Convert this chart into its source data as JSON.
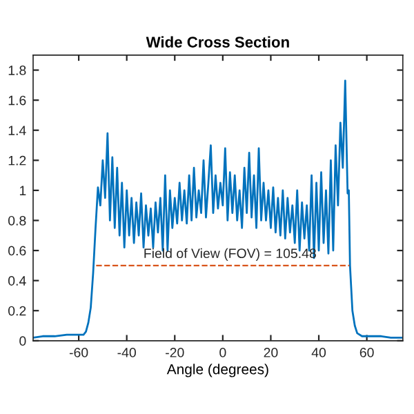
{
  "chart_data": {
    "type": "line",
    "title": "Wide Cross Section",
    "xlabel": "Angle (degrees)",
    "xlim": [
      -79,
      75
    ],
    "ylim": [
      0,
      1.9
    ],
    "xticks": [
      -60,
      -40,
      -20,
      0,
      20,
      40,
      60
    ],
    "yticks": [
      0,
      0.2,
      0.4,
      0.6,
      0.8,
      1,
      1.2,
      1.4,
      1.6,
      1.8
    ],
    "grid": false,
    "series": [
      {
        "color": "#0072bd",
        "line_style": "solid",
        "x": [
          -79,
          -75,
          -70,
          -65,
          -60,
          -58,
          -57,
          -56,
          -55,
          -54,
          -53.5,
          -53,
          -52,
          -51,
          -50,
          -49,
          -48,
          -47,
          -46,
          -45,
          -44,
          -43,
          -42,
          -41,
          -40,
          -39,
          -38,
          -37,
          -36,
          -35,
          -34,
          -33,
          -32,
          -31,
          -30,
          -29,
          -28,
          -27,
          -26,
          -25,
          -24,
          -23,
          -22,
          -21,
          -20,
          -19,
          -18,
          -17,
          -16,
          -15,
          -14,
          -13,
          -12,
          -11,
          -10,
          -9,
          -8,
          -7,
          -6,
          -5,
          -4,
          -3,
          -2,
          -1,
          0,
          1,
          2,
          3,
          4,
          5,
          6,
          7,
          8,
          9,
          10,
          11,
          12,
          13,
          14,
          15,
          16,
          17,
          18,
          19,
          20,
          21,
          22,
          23,
          24,
          25,
          26,
          27,
          28,
          29,
          30,
          31,
          32,
          33,
          34,
          35,
          36,
          37,
          38,
          39,
          40,
          41,
          42,
          43,
          44,
          45,
          46,
          47,
          48,
          49,
          50,
          51,
          52,
          52.5,
          53,
          53.5,
          54,
          55,
          56,
          58,
          62,
          66,
          70,
          75
        ],
        "values": [
          0.02,
          0.03,
          0.03,
          0.04,
          0.04,
          0.04,
          0.06,
          0.12,
          0.22,
          0.45,
          0.6,
          0.75,
          1.02,
          0.9,
          1.2,
          0.95,
          1.38,
          0.8,
          1.22,
          0.75,
          1.15,
          0.7,
          1.05,
          0.62,
          1.0,
          0.7,
          0.95,
          0.65,
          0.92,
          0.7,
          0.98,
          0.62,
          0.9,
          0.7,
          0.88,
          0.62,
          0.92,
          0.72,
          0.95,
          0.6,
          1.1,
          0.6,
          1.0,
          0.75,
          0.95,
          0.78,
          1.05,
          0.8,
          1.0,
          0.78,
          1.1,
          0.8,
          1.15,
          0.82,
          1.0,
          0.85,
          1.2,
          0.82,
          1.05,
          1.3,
          0.85,
          1.1,
          0.88,
          1.05,
          0.9,
          1.28,
          0.8,
          1.12,
          0.85,
          1.1,
          0.8,
          1.0,
          0.75,
          1.15,
          0.85,
          1.25,
          0.82,
          1.1,
          0.75,
          1.28,
          0.8,
          1.05,
          0.8,
          1.0,
          0.75,
          1.02,
          0.72,
          0.95,
          0.7,
          1.0,
          0.68,
          0.95,
          0.72,
          0.9,
          0.65,
          1.0,
          0.6,
          0.92,
          0.68,
          0.9,
          0.6,
          1.1,
          0.55,
          1.05,
          0.6,
          1.12,
          0.65,
          1.0,
          0.58,
          1.2,
          0.6,
          1.3,
          0.9,
          1.45,
          1.15,
          1.73,
          0.98,
          1.0,
          0.5,
          0.35,
          0.2,
          0.1,
          0.05,
          0.03,
          0.03,
          0.03,
          0.02,
          0.02
        ]
      },
      {
        "color": "#d95319",
        "line_style": "dashed",
        "x": [
          -52.74,
          52.74
        ],
        "values": [
          0.5,
          0.5
        ]
      }
    ],
    "annotations": [
      {
        "text": "Field of View (FOV) = 105.48",
        "x": 3,
        "y": 0.5
      }
    ]
  }
}
